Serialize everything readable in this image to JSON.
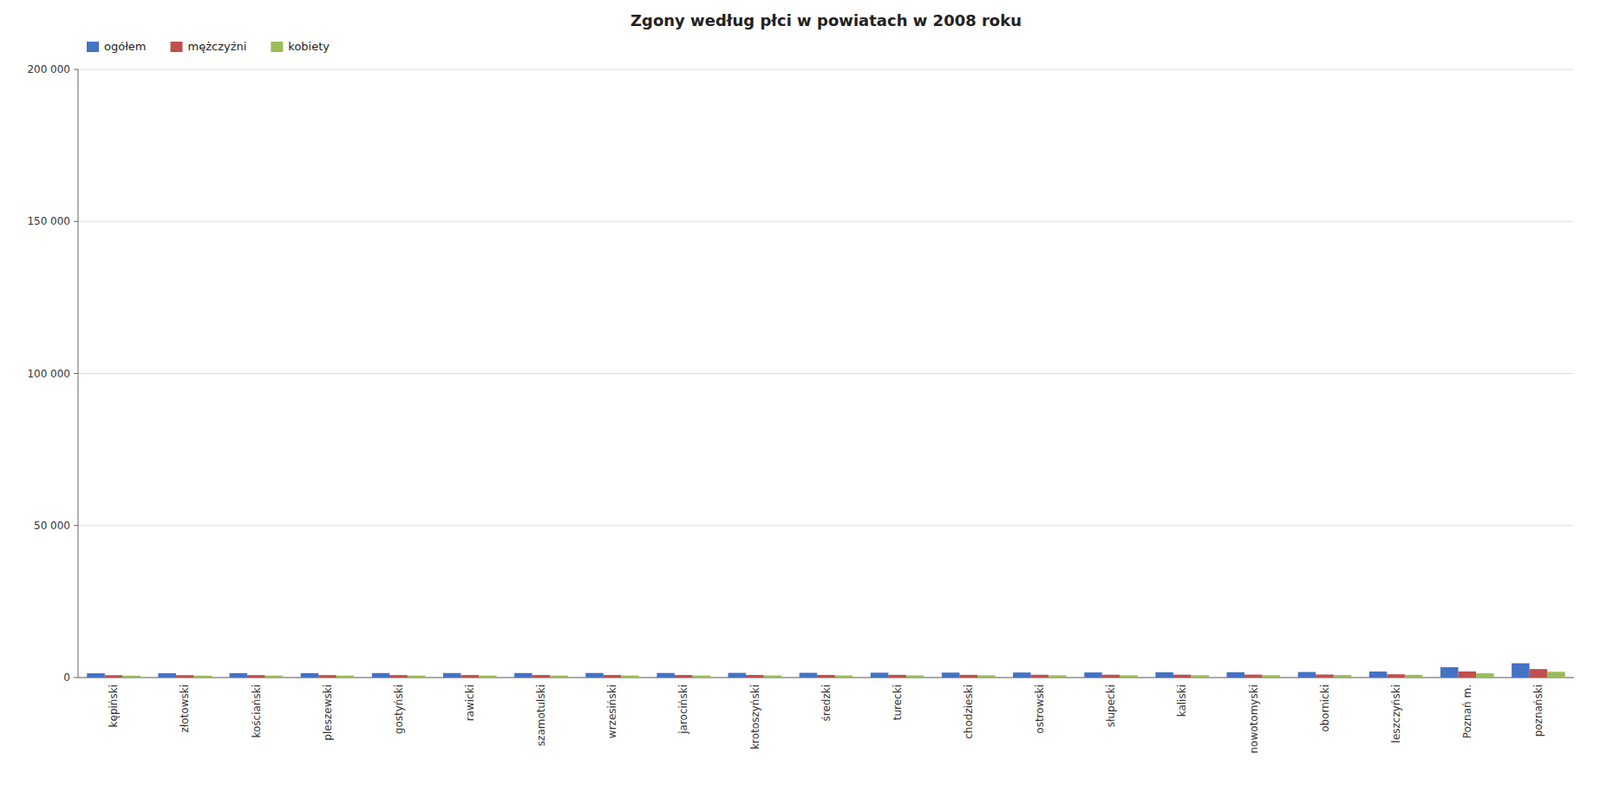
{
  "chart_data": {
    "type": "bar",
    "title": "Zgony według płci w powiatach w 2008 roku",
    "categories": [
      "kępiński",
      "złotowski",
      "kościański",
      "pleszewski",
      "gostyński",
      "rawicki",
      "szamotulski",
      "wrzesiński",
      "jarociński",
      "krotoszyński",
      "średzki",
      "turecki",
      "chodzieski",
      "ostrowski",
      "słupecki",
      "kaliski",
      "nowotomyski",
      "obornicki",
      "leszczyński",
      "Poznań m.",
      "poznański"
    ],
    "series": [
      {
        "name": "ogółem",
        "color": "#4472c4",
        "values": [
          1400,
          1420,
          1450,
          1460,
          1480,
          1490,
          1490,
          1510,
          1510,
          1540,
          1570,
          1600,
          1630,
          1660,
          1680,
          1720,
          1760,
          1830,
          1980,
          3400,
          4700
        ]
      },
      {
        "name": "mężczyźni",
        "color": "#c0504d",
        "values": [
          780,
          800,
          810,
          815,
          820,
          835,
          840,
          845,
          840,
          855,
          875,
          900,
          905,
          920,
          940,
          960,
          975,
          1010,
          1085,
          2000,
          2800
        ]
      },
      {
        "name": "kobiety",
        "color": "#9bbb59",
        "values": [
          620,
          620,
          640,
          645,
          660,
          655,
          650,
          665,
          670,
          685,
          695,
          700,
          725,
          740,
          740,
          760,
          785,
          820,
          895,
          1400,
          1900
        ]
      }
    ],
    "ylim": [
      0,
      200000
    ],
    "yticks": [
      0,
      {
        "value": 50000,
        "label": "50 000"
      },
      {
        "value": 100000,
        "label": "100 000"
      },
      {
        "value": 150000,
        "label": "150 000"
      },
      {
        "value": 200000,
        "label": "200 000"
      }
    ],
    "grid": true,
    "legend": "top-left"
  }
}
